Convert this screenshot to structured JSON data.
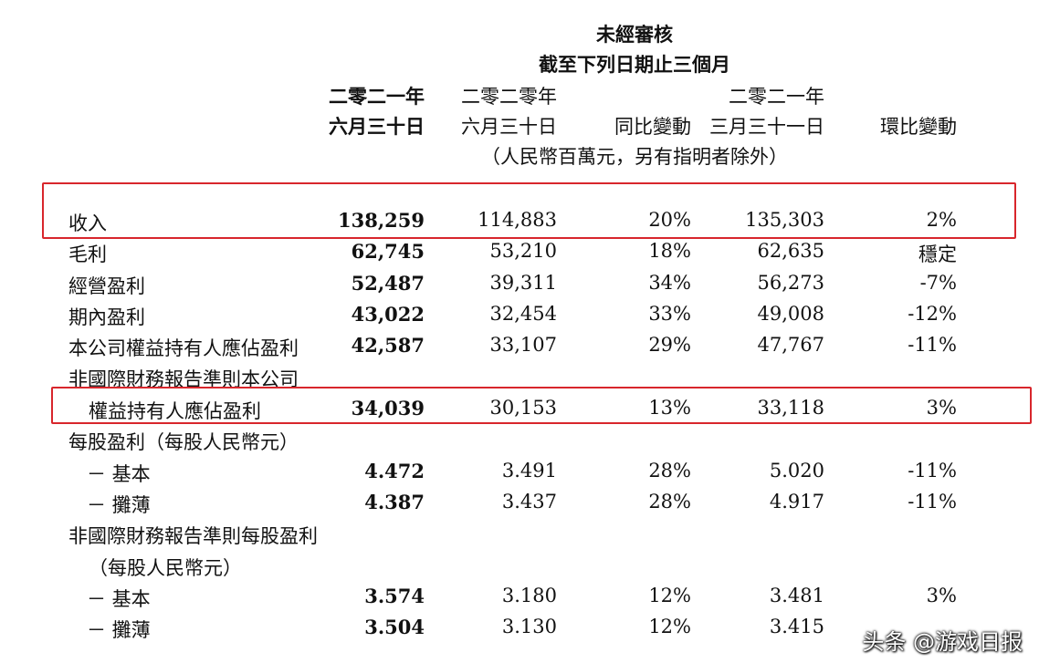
{
  "header": {
    "line1": "未經審核",
    "line2": "截至下列日期止三個月",
    "col1": {
      "line1": "二零二一年",
      "line2": "六月三十日"
    },
    "col2": {
      "line1": "二零二零年",
      "line2": "六月三十日"
    },
    "col3": {
      "line1": "同比變動"
    },
    "col4": {
      "line1": "二零二一年",
      "line2": "三月三十一日"
    },
    "col5": {
      "line1": "環比變動"
    },
    "unit": "（人民幣百萬元，另有指明者除外）"
  },
  "rows": [
    {
      "label": "收入",
      "c1": "138,259",
      "c2": "114,883",
      "c3": "20%",
      "c4": "135,303",
      "c5": "2%"
    },
    {
      "label": "毛利",
      "c1": "62,745",
      "c2": "53,210",
      "c3": "18%",
      "c4": "62,635",
      "c5": "穩定"
    },
    {
      "label": "經營盈利",
      "c1": "52,487",
      "c2": "39,311",
      "c3": "34%",
      "c4": "56,273",
      "c5": "-7%"
    },
    {
      "label": "期內盈利",
      "c1": "43,022",
      "c2": "32,454",
      "c3": "33%",
      "c4": "49,008",
      "c5": "-12%"
    },
    {
      "label": "本公司權益持有人應佔盈利",
      "c1": "42,587",
      "c2": "33,107",
      "c3": "29%",
      "c4": "47,767",
      "c5": "-11%"
    },
    {
      "label": "非國際財務報告準則本公司",
      "c1": "",
      "c2": "",
      "c3": "",
      "c4": "",
      "c5": ""
    },
    {
      "label": "權益持有人應佔盈利",
      "c1": "34,039",
      "c2": "30,153",
      "c3": "13%",
      "c4": "33,118",
      "c5": "3%"
    },
    {
      "label": "每股盈利（每股人民幣元）",
      "c1": "",
      "c2": "",
      "c3": "",
      "c4": "",
      "c5": ""
    },
    {
      "label": "－ 基本",
      "c1": "4.472",
      "c2": "3.491",
      "c3": "28%",
      "c4": "5.020",
      "c5": "-11%"
    },
    {
      "label": "－ 攤薄",
      "c1": "4.387",
      "c2": "3.437",
      "c3": "28%",
      "c4": "4.917",
      "c5": "-11%"
    },
    {
      "label": "非國際財務報告準則每股盈利",
      "c1": "",
      "c2": "",
      "c3": "",
      "c4": "",
      "c5": ""
    },
    {
      "label": "（每股人民幣元）",
      "c1": "",
      "c2": "",
      "c3": "",
      "c4": "",
      "c5": ""
    },
    {
      "label": "－ 基本",
      "c1": "3.574",
      "c2": "3.180",
      "c3": "12%",
      "c4": "3.481",
      "c5": "3%"
    },
    {
      "label": "－ 攤薄",
      "c1": "3.504",
      "c2": "3.130",
      "c3": "12%",
      "c4": "3.415",
      "c5": ""
    }
  ],
  "watermark": "头条 @游戏日报",
  "highlight_color": "#d8262c"
}
